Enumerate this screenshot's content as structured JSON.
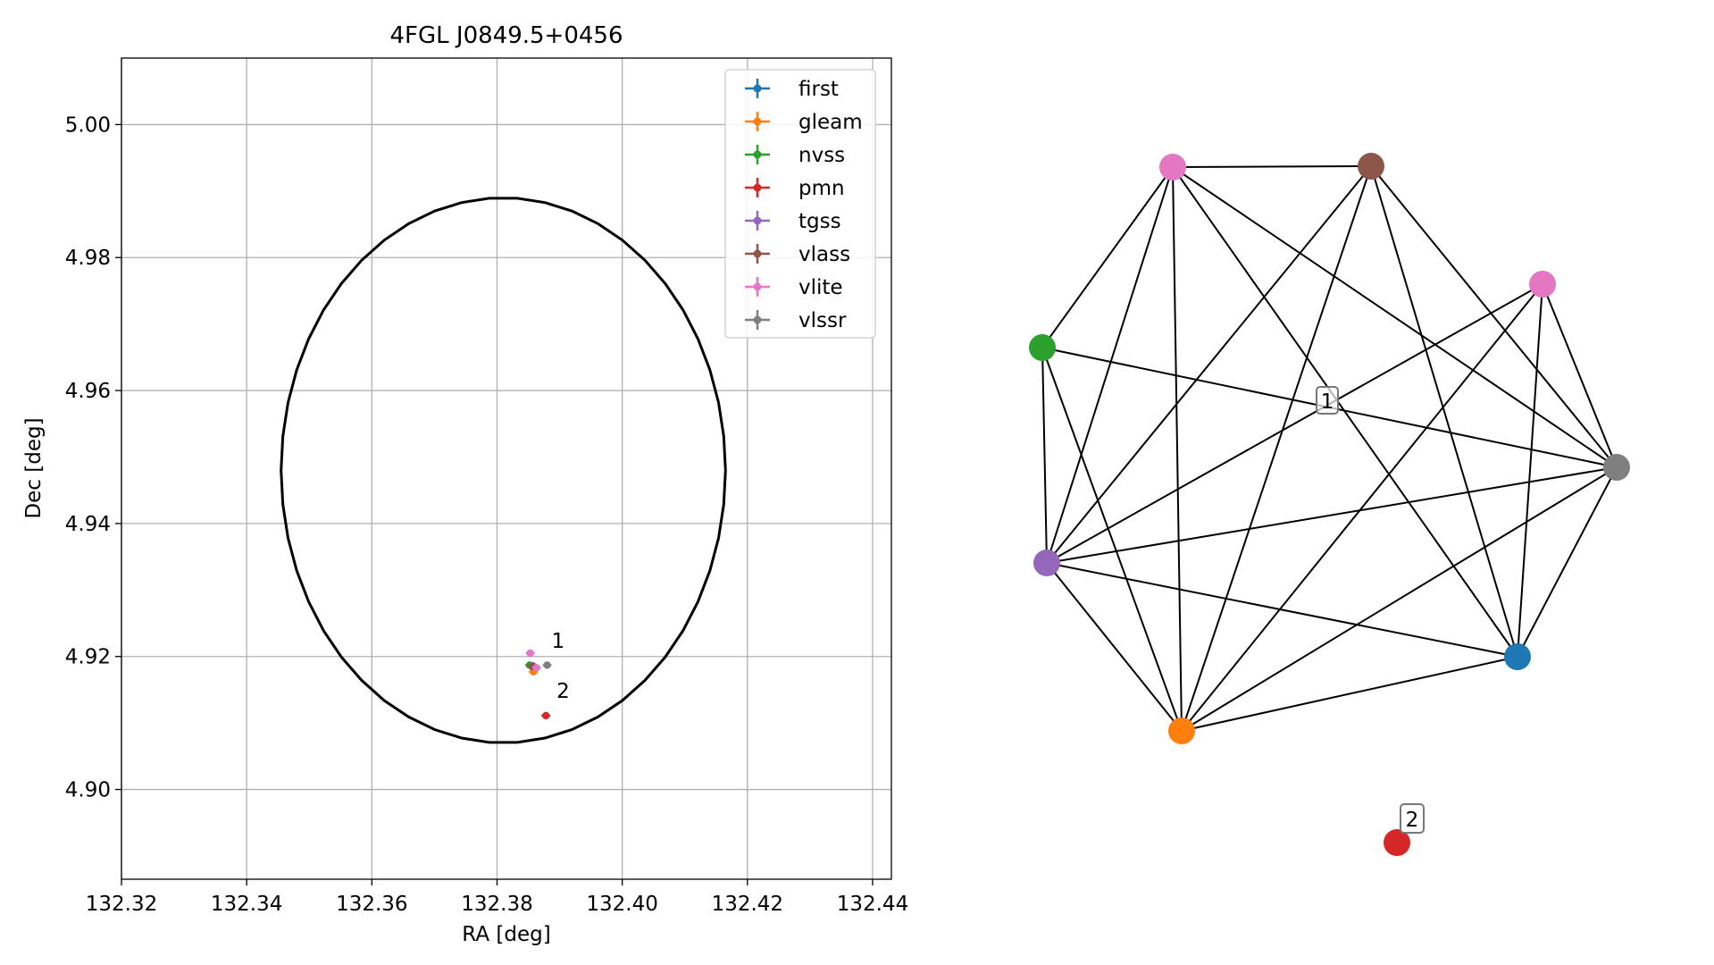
{
  "chart_data": [
    {
      "type": "scatter",
      "title": "4FGL J0849.5+0456",
      "xlabel": "RA [deg]",
      "ylabel": "Dec [deg]",
      "xlim": [
        132.32,
        132.443
      ],
      "ylim": [
        4.8865,
        5.01
      ],
      "xticks": [
        132.32,
        132.34,
        132.36,
        132.38,
        132.4,
        132.42,
        132.44
      ],
      "xtick_labels": [
        "132.32",
        "132.34",
        "132.36",
        "132.38",
        "132.40",
        "132.42",
        "132.44"
      ],
      "yticks": [
        4.9,
        4.92,
        4.94,
        4.96,
        4.98,
        5.0
      ],
      "ytick_labels": [
        "4.90",
        "4.92",
        "4.94",
        "4.96",
        "4.98",
        "5.00"
      ],
      "grid": true,
      "legend_position": "top-right",
      "series": [
        {
          "name": "first",
          "color": "#1f77b4",
          "x": [
            132.3855
          ],
          "y": [
            4.9186
          ]
        },
        {
          "name": "gleam",
          "color": "#ff7f0e",
          "x": [
            132.3858
          ],
          "y": [
            4.9177
          ]
        },
        {
          "name": "nvss",
          "color": "#2ca02c",
          "x": [
            132.3852
          ],
          "y": [
            4.9187
          ]
        },
        {
          "name": "pmn",
          "color": "#d62728",
          "x": [
            132.3878
          ],
          "y": [
            4.9111
          ]
        },
        {
          "name": "tgss",
          "color": "#9467bd",
          "x": [
            132.3857
          ],
          "y": [
            4.9186
          ]
        },
        {
          "name": "vlass",
          "color": "#8c564b",
          "x": [
            132.3856
          ],
          "y": [
            4.9185
          ]
        },
        {
          "name": "vlite",
          "color": "#e377c2",
          "x": [
            132.3853,
            132.3863
          ],
          "y": [
            4.9205,
            4.9183
          ]
        },
        {
          "name": "vlssr",
          "color": "#7f7f7f",
          "x": [
            132.388
          ],
          "y": [
            4.9187
          ]
        }
      ],
      "error_ellipse": {
        "ra_center": 132.381,
        "dec_center": 4.948,
        "ra_semi_axis": 0.0355,
        "dec_semi_axis": 0.041,
        "color": "#000000"
      },
      "annotations": [
        {
          "text": "1",
          "x": 132.3887,
          "y": 4.9213
        },
        {
          "text": "2",
          "x": 132.3895,
          "y": 4.9138
        }
      ]
    },
    {
      "type": "network",
      "node_positions_note": "positions encoded in drawing script",
      "nodes": [
        {
          "id": "vlite_a",
          "color": "#e377c2"
        },
        {
          "id": "vlass",
          "color": "#8c564b"
        },
        {
          "id": "vlite_b",
          "color": "#e377c2"
        },
        {
          "id": "nvss",
          "color": "#2ca02c"
        },
        {
          "id": "vlssr",
          "color": "#7f7f7f"
        },
        {
          "id": "tgss",
          "color": "#9467bd"
        },
        {
          "id": "first",
          "color": "#1f77b4"
        },
        {
          "id": "gleam",
          "color": "#ff7f0e"
        },
        {
          "id": "pmn",
          "color": "#d62728"
        }
      ],
      "edges": [
        [
          "vlite_a",
          "vlass"
        ],
        [
          "vlite_a",
          "nvss"
        ],
        [
          "vlite_a",
          "tgss"
        ],
        [
          "vlite_a",
          "gleam"
        ],
        [
          "vlite_a",
          "first"
        ],
        [
          "vlite_a",
          "vlssr"
        ],
        [
          "vlass",
          "tgss"
        ],
        [
          "vlass",
          "gleam"
        ],
        [
          "vlass",
          "first"
        ],
        [
          "vlass",
          "vlssr"
        ],
        [
          "vlite_b",
          "tgss"
        ],
        [
          "vlite_b",
          "gleam"
        ],
        [
          "vlite_b",
          "first"
        ],
        [
          "vlite_b",
          "vlssr"
        ],
        [
          "nvss",
          "tgss"
        ],
        [
          "nvss",
          "gleam"
        ],
        [
          "nvss",
          "vlssr"
        ],
        [
          "tgss",
          "vlssr"
        ],
        [
          "tgss",
          "first"
        ],
        [
          "tgss",
          "gleam"
        ],
        [
          "vlssr",
          "first"
        ],
        [
          "vlssr",
          "gleam"
        ],
        [
          "first",
          "gleam"
        ]
      ],
      "labels": [
        {
          "text": "1"
        },
        {
          "text": "2"
        }
      ]
    }
  ]
}
